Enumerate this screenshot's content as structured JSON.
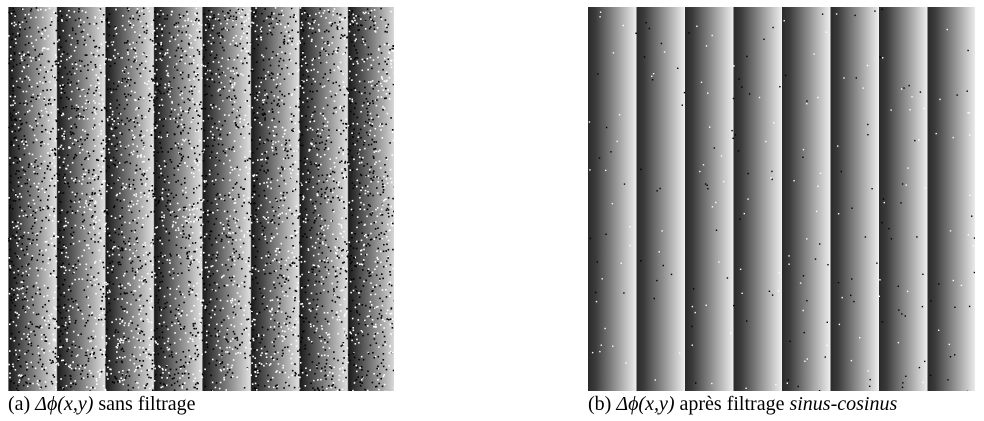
{
  "figures": [
    {
      "label": "(a)",
      "math": "Δϕ(x,y)",
      "text": "sans filtrage"
    },
    {
      "label": "(b)",
      "math": "Δϕ(x,y)",
      "text": "après filtrage",
      "emph": "sinus-cosinus"
    }
  ]
}
